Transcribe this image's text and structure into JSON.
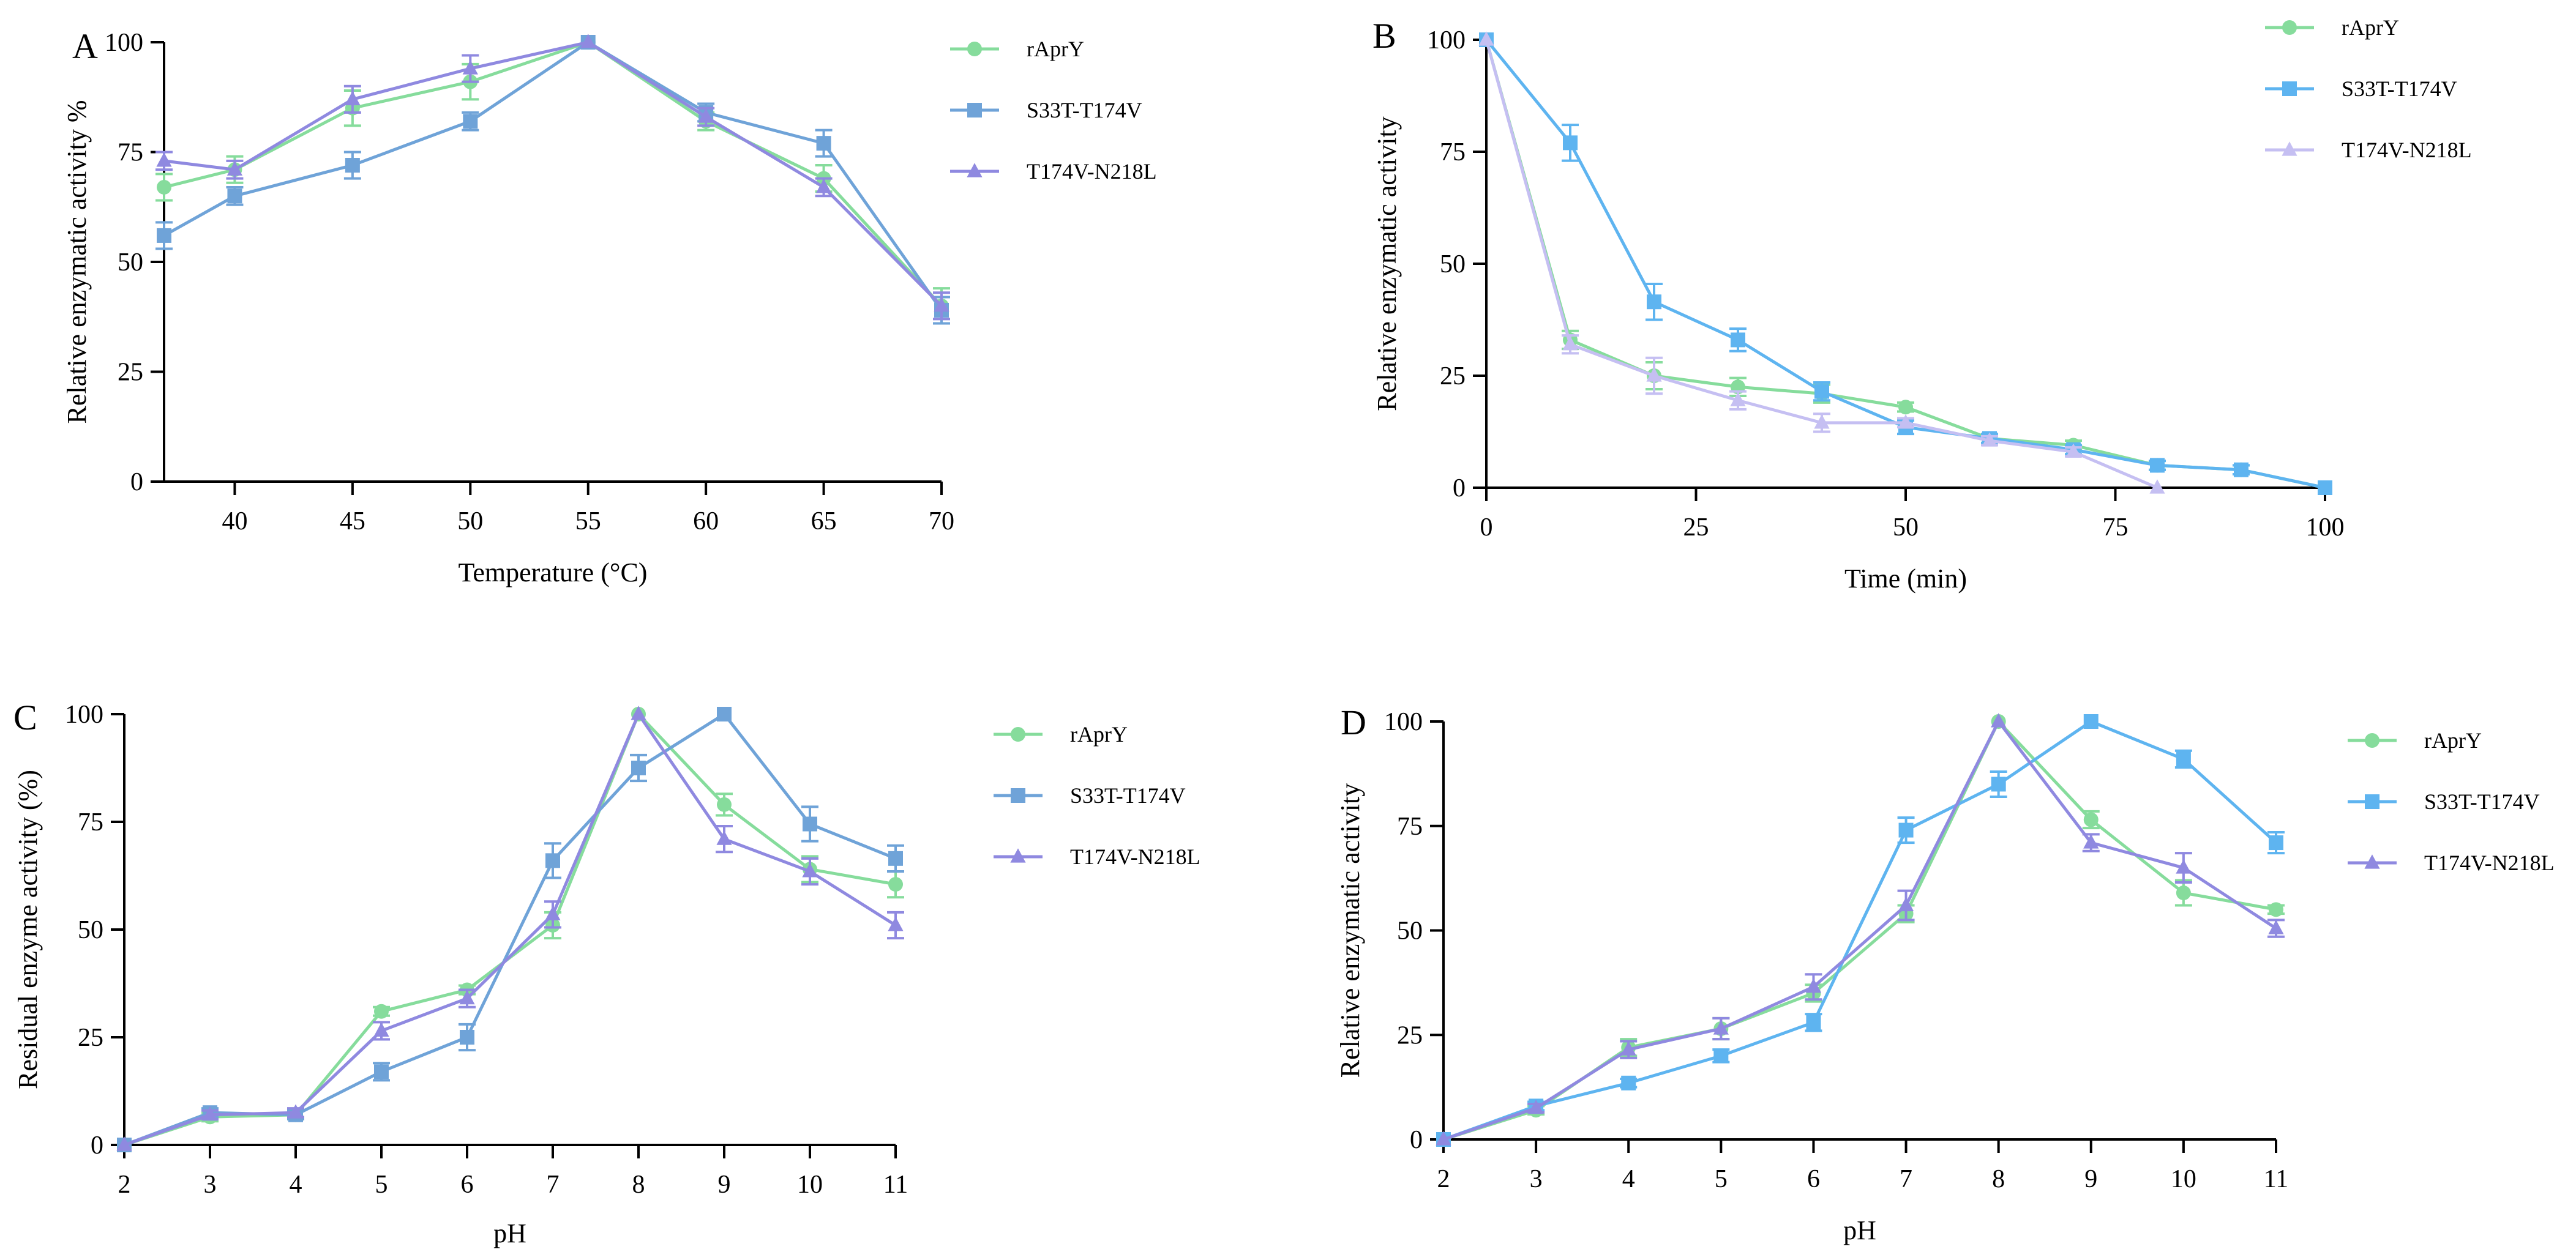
{
  "figure_title": "",
  "chart_data": [
    {
      "panel": "A",
      "type": "line",
      "xlabel": "Temperature (°C)",
      "ylabel": "Relative enzymatic activity %",
      "xlim": [
        37,
        70
      ],
      "ylim": [
        0,
        100
      ],
      "xticks": [
        40,
        45,
        50,
        55,
        60,
        65,
        70
      ],
      "yticks": [
        0,
        25,
        50,
        75,
        100
      ],
      "legend_position": "top-right",
      "series": [
        {
          "name": "rAprY",
          "color": "#86dc9c",
          "marker": "circle",
          "x": [
            37,
            40,
            45,
            50,
            55,
            60,
            65,
            70
          ],
          "y": [
            67,
            71,
            85,
            91,
            100,
            82,
            69,
            40
          ],
          "err": [
            3,
            3,
            4,
            4,
            0,
            2,
            3,
            4
          ]
        },
        {
          "name": "S33T-T174V",
          "color": "#6fa3d8",
          "marker": "square",
          "x": [
            37,
            40,
            45,
            50,
            55,
            60,
            65,
            70
          ],
          "y": [
            56,
            65,
            72,
            82,
            100,
            84,
            77,
            39
          ],
          "err": [
            3,
            2,
            3,
            2,
            0,
            2,
            3,
            3
          ]
        },
        {
          "name": "T174V-N218L",
          "color": "#8f89e0",
          "marker": "triangle",
          "x": [
            37,
            40,
            45,
            50,
            55,
            60,
            65,
            70
          ],
          "y": [
            73,
            71,
            87,
            94,
            100,
            83,
            67,
            40
          ],
          "err": [
            2,
            2,
            3,
            3,
            0,
            2,
            2,
            3
          ]
        }
      ]
    },
    {
      "panel": "B",
      "type": "line",
      "xlabel": "Time (min)",
      "ylabel": "Relative enzymatic activity",
      "xlim": [
        0,
        100
      ],
      "ylim": [
        0,
        100
      ],
      "xticks": [
        0,
        25,
        50,
        75,
        100
      ],
      "yticks": [
        0,
        25,
        50,
        75,
        100
      ],
      "legend_position": "top-right",
      "series": [
        {
          "name": "rAprY",
          "color": "#86dc9c",
          "marker": "circle",
          "x": [
            0,
            10,
            20,
            30,
            40,
            50,
            60,
            70,
            80,
            90,
            100
          ],
          "y": [
            100,
            33,
            25,
            22.5,
            21,
            18,
            11,
            9.5,
            5,
            4,
            0
          ],
          "err": [
            0,
            2,
            3,
            2,
            2,
            1,
            1,
            1,
            1,
            1,
            0
          ]
        },
        {
          "name": "S33T-T174V",
          "color": "#5eb4f0",
          "marker": "square",
          "x": [
            0,
            10,
            20,
            30,
            40,
            50,
            60,
            70,
            80,
            90,
            100
          ],
          "y": [
            100,
            77,
            41.5,
            33,
            21.5,
            13.5,
            11,
            8.5,
            5,
            4,
            0
          ],
          "err": [
            0,
            4,
            4,
            2.5,
            2,
            1.5,
            1,
            1,
            1,
            1,
            0
          ]
        },
        {
          "name": "T174V-N218L",
          "color": "#c5bff2",
          "marker": "triangle",
          "x": [
            0,
            10,
            20,
            30,
            40,
            50,
            60,
            70,
            80
          ],
          "y": [
            100,
            32,
            25,
            19.5,
            14.5,
            14.5,
            10.5,
            8,
            0
          ],
          "err": [
            0,
            2,
            4,
            2,
            2,
            1,
            1,
            1,
            0
          ]
        }
      ]
    },
    {
      "panel": "C",
      "type": "line",
      "xlabel": "pH",
      "ylabel": "Residual enzyme activity (%)",
      "xlim": [
        2,
        11
      ],
      "ylim": [
        0,
        100
      ],
      "xticks": [
        2,
        3,
        4,
        5,
        6,
        7,
        8,
        9,
        10,
        11
      ],
      "yticks": [
        0,
        25,
        50,
        75,
        100
      ],
      "legend_position": "top-right",
      "series": [
        {
          "name": "rAprY",
          "color": "#86dc9c",
          "marker": "circle",
          "x": [
            2,
            3,
            4,
            5,
            6,
            7,
            8,
            9,
            10,
            11
          ],
          "y": [
            0,
            6.5,
            7,
            31,
            36,
            51,
            100,
            79,
            64,
            60.5
          ],
          "err": [
            0,
            1,
            1,
            1,
            1,
            3,
            0,
            2.5,
            3,
            3
          ]
        },
        {
          "name": "S33T-T174V",
          "color": "#6fa3d8",
          "marker": "square",
          "x": [
            2,
            3,
            4,
            5,
            6,
            7,
            8,
            9,
            10,
            11
          ],
          "y": [
            0,
            7.5,
            7,
            17,
            25,
            66,
            87.5,
            100,
            74.5,
            66.5
          ],
          "err": [
            0,
            1,
            1,
            2,
            3,
            4,
            3,
            0,
            4,
            3
          ]
        },
        {
          "name": "T174V-N218L",
          "color": "#8f89e0",
          "marker": "triangle",
          "x": [
            2,
            3,
            4,
            5,
            6,
            7,
            8,
            9,
            10,
            11
          ],
          "y": [
            0,
            7,
            7.5,
            26.5,
            34,
            53.5,
            100,
            71,
            63.5,
            51
          ],
          "err": [
            0,
            1,
            1,
            2,
            2,
            3,
            0,
            3,
            3,
            3
          ]
        }
      ]
    },
    {
      "panel": "D",
      "type": "line",
      "xlabel": "pH",
      "ylabel": "Relative enzymatic activity",
      "xlim": [
        2,
        11
      ],
      "ylim": [
        0,
        100
      ],
      "xticks": [
        2,
        3,
        4,
        5,
        6,
        7,
        8,
        9,
        10,
        11
      ],
      "yticks": [
        0,
        25,
        50,
        75,
        100
      ],
      "legend_position": "top-right",
      "series": [
        {
          "name": "rAprY",
          "color": "#86dc9c",
          "marker": "circle",
          "x": [
            2,
            3,
            4,
            5,
            6,
            7,
            8,
            9,
            10,
            11
          ],
          "y": [
            0,
            7,
            22,
            26.5,
            35,
            54,
            100,
            76.5,
            59,
            55
          ],
          "err": [
            0,
            1,
            2,
            2.5,
            2,
            2,
            0,
            2,
            3,
            1
          ]
        },
        {
          "name": "S33T-T174V",
          "color": "#5eb4f0",
          "marker": "square",
          "x": [
            2,
            3,
            4,
            5,
            6,
            7,
            8,
            9,
            10,
            11
          ],
          "y": [
            0,
            8,
            13.5,
            20,
            28,
            74,
            85,
            100,
            91,
            71
          ],
          "err": [
            0,
            1,
            1,
            1.5,
            2,
            3,
            3,
            0,
            2,
            2.5
          ]
        },
        {
          "name": "T174V-N218L",
          "color": "#8f89e0",
          "marker": "triangle",
          "x": [
            2,
            3,
            4,
            5,
            6,
            7,
            8,
            9,
            10,
            11
          ],
          "y": [
            0,
            7.5,
            21.5,
            26.5,
            36.5,
            56,
            100,
            71,
            65,
            50.5
          ],
          "err": [
            0,
            1,
            2,
            2.5,
            3,
            3.5,
            0,
            2,
            3.5,
            2
          ]
        }
      ]
    }
  ]
}
